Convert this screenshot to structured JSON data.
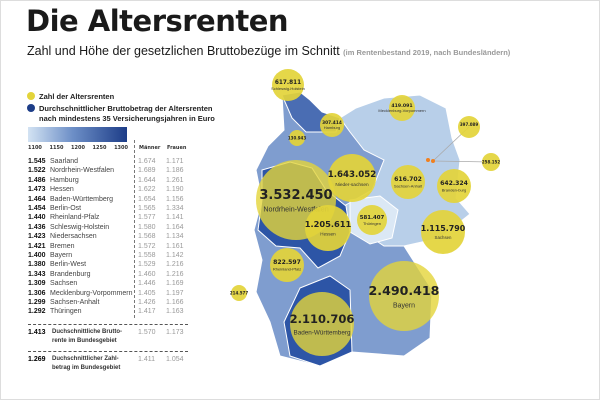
{
  "title": "Die Altersrenten",
  "subtitle": "Zahl und Höhe der gesetzlichen Bruttobezüge im Schnitt",
  "subtitle_note": "(im Rentenbestand 2019, nach Bundesländern)",
  "legend": {
    "count_label": "Zahl der Altersrenten",
    "avg_label_1": "Durchschnittlicher Bruttobetrag der Altersrenten",
    "avg_label_2": "nach mindestens 35 Versicherungsjahren in Euro",
    "scale_ticks": [
      "1100",
      "1150",
      "1200",
      "1250",
      "1300"
    ]
  },
  "colors": {
    "bubble": "#e3d43a",
    "dark_blue": "#1d3d88",
    "light_blue": "#c9dcef",
    "accent_dot": "#f08020"
  },
  "table": {
    "col_men": "Männer",
    "col_women": "Frauen",
    "rows": [
      {
        "value": "1.545",
        "state": "Saarland",
        "men": "1.674",
        "women": "1.171"
      },
      {
        "value": "1.522",
        "state": "Nordrhein-Westfalen",
        "men": "1.689",
        "women": "1.186"
      },
      {
        "value": "1.486",
        "state": "Hamburg",
        "men": "1.644",
        "women": "1.261"
      },
      {
        "value": "1.473",
        "state": "Hessen",
        "men": "1.622",
        "women": "1.190"
      },
      {
        "value": "1.464",
        "state": "Baden-Württemberg",
        "men": "1.654",
        "women": "1.156"
      },
      {
        "value": "1.454",
        "state": "Berlin-Ost",
        "men": "1.565",
        "women": "1.334"
      },
      {
        "value": "1.440",
        "state": "Rheinland-Pfalz",
        "men": "1.577",
        "women": "1.141"
      },
      {
        "value": "1.436",
        "state": "Schleswig-Holstein",
        "men": "1.580",
        "women": "1.164"
      },
      {
        "value": "1.423",
        "state": "Niedersachsen",
        "men": "1.568",
        "women": "1.134"
      },
      {
        "value": "1.421",
        "state": "Bremen",
        "men": "1.572",
        "women": "1.161"
      },
      {
        "value": "1.400",
        "state": "Bayern",
        "men": "1.558",
        "women": "1.142"
      },
      {
        "value": "1.380",
        "state": "Berlin-West",
        "men": "1.529",
        "women": "1.216"
      },
      {
        "value": "1.343",
        "state": "Brandenburg",
        "men": "1.460",
        "women": "1.216"
      },
      {
        "value": "1.309",
        "state": "Sachsen",
        "men": "1.446",
        "women": "1.169"
      },
      {
        "value": "1.306",
        "state": "Mecklenburg-Vorpommern",
        "men": "1.405",
        "women": "1.197"
      },
      {
        "value": "1.299",
        "state": "Sachsen-Anhalt",
        "men": "1.426",
        "women": "1.166"
      },
      {
        "value": "1.292",
        "state": "Thüringen",
        "men": "1.417",
        "women": "1.163"
      }
    ],
    "summary": [
      {
        "value": "1.413",
        "label": "Duchschnittliche Brutto-rente im Bundesgebiet",
        "men": "1.570",
        "women": "1.173"
      },
      {
        "value": "1.269",
        "label": "Duchschnittlicher Zahl-betrag im Bundesgebiet",
        "men": "1.411",
        "women": "1.054"
      }
    ]
  },
  "chart_data": {
    "type": "bubble-map",
    "title": "Die Altersrenten",
    "bubbles": [
      {
        "state": "Schleswig-Holstein",
        "label": "Schleswig-Holstein",
        "count": "617.811",
        "avg": 1436
      },
      {
        "state": "Mecklenburg-Vorpommern",
        "label": "Mecklenburg-Vorpommern",
        "count": "419.091",
        "avg": 1306
      },
      {
        "state": "Hamburg",
        "label": "Hamburg",
        "count": "307.414",
        "avg": 1486
      },
      {
        "state": "Bremen",
        "label": "Bremen",
        "count": "130.943",
        "avg": 1421
      },
      {
        "state": "Berlin-West",
        "label": "Berlin-West",
        "count": "397.089",
        "avg": 1380
      },
      {
        "state": "Berlin-Ost",
        "label": "Berlin-Ost",
        "count": "258.152",
        "avg": 1454
      },
      {
        "state": "Niedersachsen",
        "label": "Nieder-sachsen",
        "count": "1.643.052",
        "avg": 1423
      },
      {
        "state": "Sachsen-Anhalt",
        "label": "Sachsen-Anhalt",
        "count": "616.702",
        "avg": 1299
      },
      {
        "state": "Brandenburg",
        "label": "Branden-burg",
        "count": "642.324",
        "avg": 1343
      },
      {
        "state": "Nordrhein-Westfalen",
        "label": "Nordrhein-Westfalen",
        "count": "3.532.450",
        "avg": 1522
      },
      {
        "state": "Hessen",
        "label": "Hessen",
        "count": "1.205.611",
        "avg": 1473
      },
      {
        "state": "Thüringen",
        "label": "Thüringen",
        "count": "581.407",
        "avg": 1292
      },
      {
        "state": "Sachsen",
        "label": "Sachsen",
        "count": "1.115.790",
        "avg": 1309
      },
      {
        "state": "Rheinland-Pfalz",
        "label": "Rheinland-Pfalz",
        "count": "822.597",
        "avg": 1440
      },
      {
        "state": "Saarland",
        "label": "Saarland",
        "count": "214.577",
        "avg": 1545
      },
      {
        "state": "Bayern",
        "label": "Bayern",
        "count": "2.490.418",
        "avg": 1400
      },
      {
        "state": "Baden-Württemberg",
        "label": "Baden-Württemberg",
        "count": "2.110.706",
        "avg": 1464
      }
    ],
    "color_scale_range": [
      1100,
      1300
    ]
  }
}
